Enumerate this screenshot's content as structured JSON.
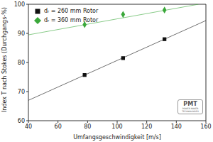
{
  "chart_data": {
    "type": "scatter",
    "x_label": "Umfangsgeschwindigkeit [m/s]",
    "y_label": "Index T nach Stokes (Durchgangs-%)",
    "xlim": [
      40,
      160
    ],
    "xticks": [
      40,
      60,
      80,
      100,
      120,
      140,
      160
    ],
    "ylim": [
      60,
      100
    ],
    "yticks": [
      60,
      70,
      80,
      90,
      100
    ],
    "grid": false,
    "legend": "upper left",
    "annotations": [
      "PMT",
      "POWER MAKER TECHNOLOGIES"
    ],
    "series": [
      {
        "name": "dᵣ = 260 mm Rotor",
        "color": "#111111",
        "marker": "square",
        "x": [
          78,
          104,
          132
        ],
        "values": [
          75.7,
          81.5,
          88
        ],
        "trend": {
          "x": [
            40,
            160
          ],
          "values": [
            67,
            94.4
          ]
        }
      },
      {
        "name": "dᵣ = 360 mm Rotor",
        "color": "#3aa83a",
        "marker": "diamond",
        "x": [
          78,
          104,
          132
        ],
        "values": [
          93,
          96.5,
          98
        ],
        "trend": {
          "x": [
            40,
            155
          ],
          "values": [
            89.5,
            100
          ]
        }
      }
    ]
  }
}
